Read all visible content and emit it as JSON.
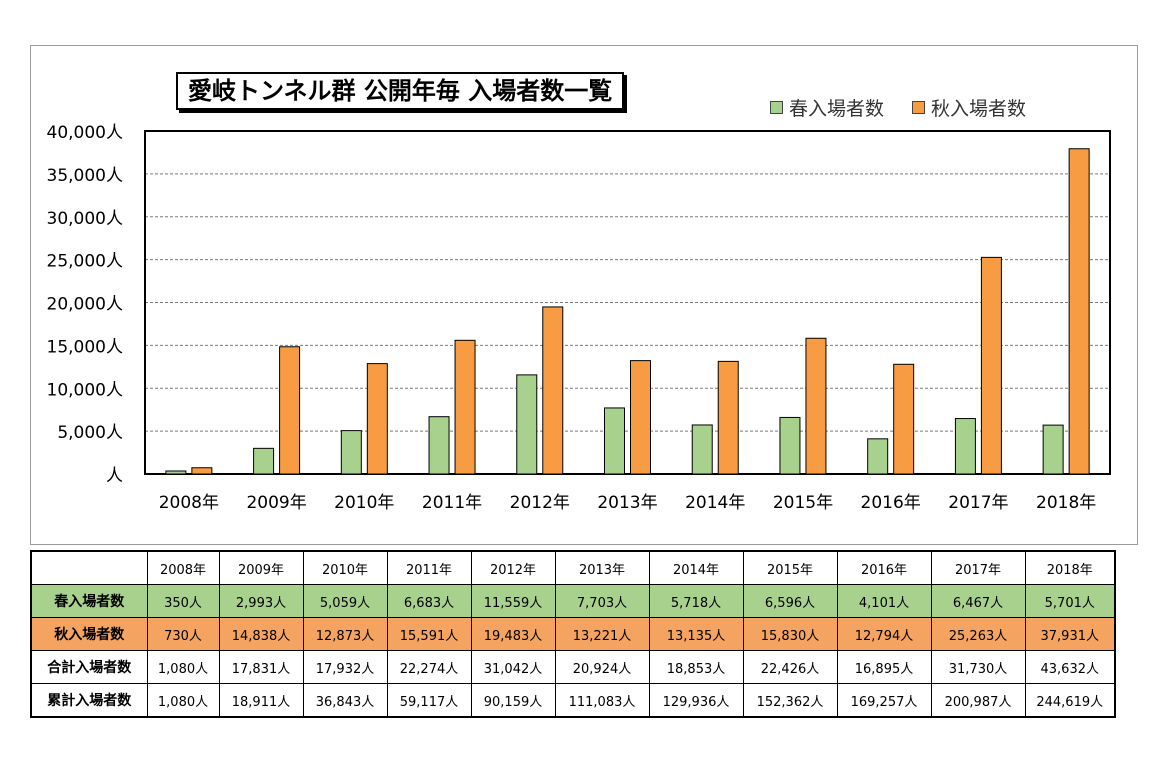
{
  "chart_data": {
    "type": "bar",
    "title": "愛岐トンネル群 公開年毎 入場者数一覧",
    "categories": [
      "2008年",
      "2009年",
      "2010年",
      "2011年",
      "2012年",
      "2013年",
      "2014年",
      "2015年",
      "2016年",
      "2017年",
      "2018年"
    ],
    "series": [
      {
        "name": "春入場者数",
        "color": "#a9d18e",
        "values": [
          350,
          2993,
          5059,
          6683,
          11559,
          7703,
          5718,
          6596,
          4101,
          6467,
          5701
        ]
      },
      {
        "name": "秋入場者数",
        "color": "#f79c42",
        "values": [
          730,
          14838,
          12873,
          15591,
          19483,
          13221,
          13135,
          15830,
          12794,
          25263,
          37931
        ]
      }
    ],
    "ylim": [
      0,
      40000
    ],
    "yticks": [
      {
        "value": 0,
        "label": "人"
      },
      {
        "value": 5000,
        "label": "5,000人"
      },
      {
        "value": 10000,
        "label": "10,000人"
      },
      {
        "value": 15000,
        "label": "15,000人"
      },
      {
        "value": 20000,
        "label": "20,000人"
      },
      {
        "value": 25000,
        "label": "25,000人"
      },
      {
        "value": 30000,
        "label": "30,000人"
      },
      {
        "value": 35000,
        "label": "35,000人"
      },
      {
        "value": 40000,
        "label": "40,000人"
      }
    ],
    "grid": true,
    "legend": "top-right"
  },
  "table": {
    "columns": [
      "2008年",
      "2009年",
      "2010年",
      "2011年",
      "2012年",
      "2013年",
      "2014年",
      "2015年",
      "2016年",
      "2017年",
      "2018年"
    ],
    "rows": [
      {
        "label": "春入場者数",
        "cells": [
          "350人",
          "2,993人",
          "5,059人",
          "6,683人",
          "11,559人",
          "7,703人",
          "5,718人",
          "6,596人",
          "4,101人",
          "6,467人",
          "5,701人"
        ]
      },
      {
        "label": "秋入場者数",
        "cells": [
          "730人",
          "14,838人",
          "12,873人",
          "15,591人",
          "19,483人",
          "13,221人",
          "13,135人",
          "15,830人",
          "12,794人",
          "25,263人",
          "37,931人"
        ]
      },
      {
        "label": "合計入場者数",
        "cells": [
          "1,080人",
          "17,831人",
          "17,932人",
          "22,274人",
          "31,042人",
          "20,924人",
          "18,853人",
          "22,426人",
          "16,895人",
          "31,730人",
          "43,632人"
        ]
      },
      {
        "label": "累計入場者数",
        "cells": [
          "1,080人",
          "18,911人",
          "36,843人",
          "59,117人",
          "90,159人",
          "111,083人",
          "129,936人",
          "152,362人",
          "169,257人",
          "200,987人",
          "244,619人"
        ]
      }
    ]
  }
}
